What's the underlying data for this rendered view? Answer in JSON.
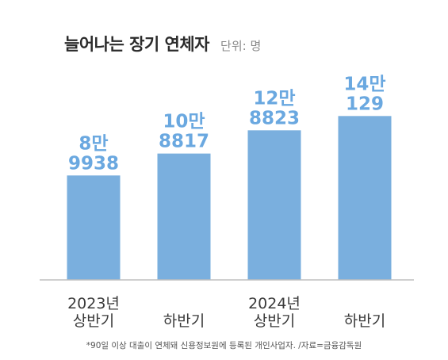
{
  "header": {
    "title": "늘어나는 장기 연체자",
    "unit": "단위: 명"
  },
  "footer": {
    "source": "*90일 이상 대출이 연체돼 신용정보원에 등록된 개인사업자. /자료=금융감독원"
  },
  "colors": {
    "bar": "#7aafde",
    "value_text": "#6aa8e0",
    "axis": "#bfbfbf",
    "label_text": "#3a3a3a"
  },
  "chart_data": {
    "type": "bar",
    "categories": [
      [
        "2023년",
        "상반기"
      ],
      [
        "하반기"
      ],
      [
        "2024년",
        "상반기"
      ],
      [
        "하반기"
      ]
    ],
    "values": [
      89938,
      108817,
      128823,
      141129
    ],
    "data_labels": [
      [
        "8만",
        "9938"
      ],
      [
        "10만",
        "8817"
      ],
      [
        "12만",
        "8823"
      ],
      [
        "14만",
        "129"
      ]
    ],
    "ylim": [
      0,
      155000
    ],
    "grid": false,
    "legend": "none"
  }
}
